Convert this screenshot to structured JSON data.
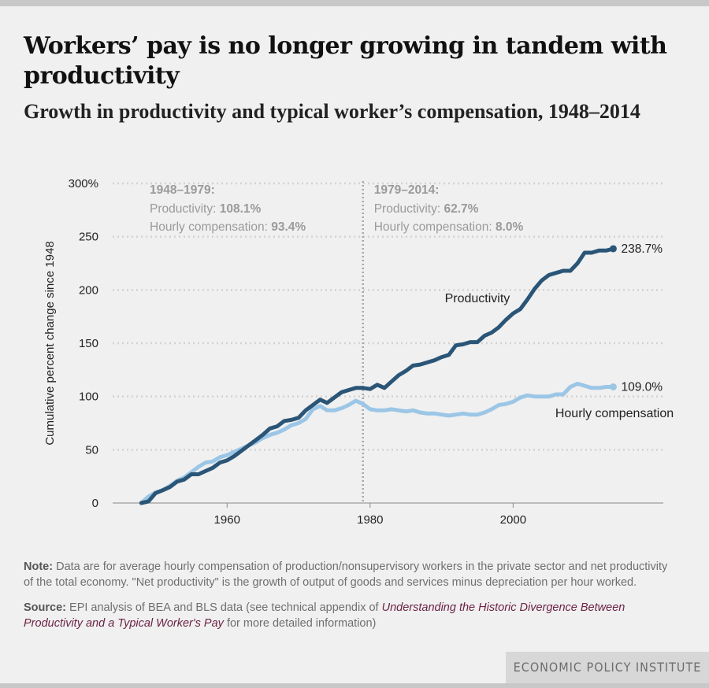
{
  "header": {
    "title": "Workers’ pay is no longer growing in tandem with productivity",
    "subtitle": "Growth in productivity and typical worker’s compensation, 1948–2014"
  },
  "chart_data": {
    "type": "line",
    "ylabel": "Cumulative percent change since 1948",
    "xlim": [
      1944,
      2021
    ],
    "ylim": [
      0,
      300
    ],
    "yticks": [
      0,
      50,
      100,
      150,
      200,
      250,
      300
    ],
    "ytick_labels": [
      "0",
      "50",
      "100",
      "150",
      "200",
      "250",
      "300%"
    ],
    "xticks": [
      1960,
      1980,
      2000
    ],
    "xtick_labels": [
      "1960",
      "1980",
      "2000"
    ],
    "grid": true,
    "divider_year": 1979,
    "colors": {
      "productivity": "#2a5577",
      "compensation": "#9cc6e6"
    },
    "periods": [
      {
        "heading": "1948–1979:",
        "prod_label": "Productivity: ",
        "prod_value": "108.1%",
        "comp_label": "Hourly compensation: ",
        "comp_value": "93.4%"
      },
      {
        "heading": "1979–2014:",
        "prod_label": "Productivity: ",
        "prod_value": "62.7%",
        "comp_label": "Hourly compensation: ",
        "comp_value": "8.0%"
      }
    ],
    "series": [
      {
        "name": "Productivity",
        "end_label": "238.7%",
        "x": [
          1948,
          1949,
          1950,
          1951,
          1952,
          1953,
          1954,
          1955,
          1956,
          1957,
          1958,
          1959,
          1960,
          1961,
          1962,
          1963,
          1964,
          1965,
          1966,
          1967,
          1968,
          1969,
          1970,
          1971,
          1972,
          1973,
          1974,
          1975,
          1976,
          1977,
          1978,
          1979,
          1980,
          1981,
          1982,
          1983,
          1984,
          1985,
          1986,
          1987,
          1988,
          1989,
          1990,
          1991,
          1992,
          1993,
          1994,
          1995,
          1996,
          1997,
          1998,
          1999,
          2000,
          2001,
          2002,
          2003,
          2004,
          2005,
          2006,
          2007,
          2008,
          2009,
          2010,
          2011,
          2012,
          2013,
          2014
        ],
        "values": [
          0,
          1.5,
          9.3,
          12,
          15,
          20,
          22,
          27,
          27,
          30,
          33,
          38,
          40,
          44,
          49,
          54,
          59,
          64,
          70,
          72,
          77,
          78,
          80,
          87,
          92,
          97,
          94,
          99,
          104,
          106,
          108,
          108,
          107,
          111,
          108,
          114,
          120,
          124,
          129,
          130,
          132,
          134,
          137,
          139,
          148,
          149,
          151,
          151,
          157,
          160,
          165,
          172,
          178,
          182,
          191,
          201,
          209,
          214,
          216,
          218,
          218,
          225,
          235,
          235,
          237,
          237,
          238.7
        ]
      },
      {
        "name": "Hourly compensation",
        "end_label": "109.0%",
        "x": [
          1948,
          1949,
          1950,
          1951,
          1952,
          1953,
          1954,
          1955,
          1956,
          1957,
          1958,
          1959,
          1960,
          1961,
          1962,
          1963,
          1964,
          1965,
          1966,
          1967,
          1968,
          1969,
          1970,
          1971,
          1972,
          1973,
          1974,
          1975,
          1976,
          1977,
          1978,
          1979,
          1980,
          1981,
          1982,
          1983,
          1984,
          1985,
          1986,
          1987,
          1988,
          1989,
          1990,
          1991,
          1992,
          1993,
          1994,
          1995,
          1996,
          1997,
          1998,
          1999,
          2000,
          2001,
          2002,
          2003,
          2004,
          2005,
          2006,
          2007,
          2008,
          2009,
          2010,
          2011,
          2012,
          2013,
          2014
        ],
        "values": [
          0,
          6,
          10,
          12,
          16,
          21,
          24,
          29,
          34,
          38,
          39,
          43,
          45,
          48,
          51,
          54,
          57,
          61,
          64,
          66,
          69,
          73,
          75,
          79,
          88,
          91,
          87,
          87,
          89,
          92,
          96,
          93,
          88,
          87,
          87,
          88,
          87,
          86,
          87,
          85,
          84,
          84,
          83,
          82,
          83,
          84,
          83,
          83,
          85,
          88,
          92,
          93,
          95,
          99,
          101,
          100,
          100,
          100,
          102,
          102,
          109,
          112,
          110,
          108,
          108,
          109,
          109
        ]
      }
    ]
  },
  "notes": {
    "note_label": "Note:",
    "note_text": " Data are for average hourly compensation of production/nonsupervisory workers in the private sector and net productivity of the total economy. \"Net productivity\" is the growth of output of goods and services minus depreciation per hour worked.",
    "source_label": "Source:",
    "source_text": " EPI analysis of BEA and BLS data (see technical appendix of ",
    "source_link": "Understanding the Historic Divergence Between Productivity and a Typical Worker's Pay",
    "source_tail": " for more detailed information)"
  },
  "brand": "ECONOMIC POLICY INSTITUTE"
}
